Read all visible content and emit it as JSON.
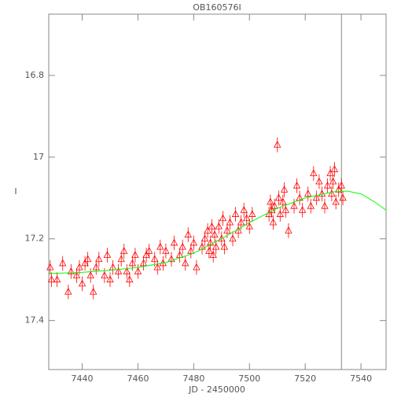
{
  "chart_data": {
    "type": "scatter",
    "title": "OB160576I",
    "x_label": "JD - 2450000",
    "y_label": "I",
    "xlim": [
      7428,
      7549
    ],
    "ylim": [
      17.52,
      16.65
    ],
    "xticks": [
      7440,
      7460,
      7480,
      7500,
      7520,
      7540
    ],
    "yticks": [
      16.8,
      17.0,
      17.2,
      17.4
    ],
    "vline": 7533,
    "vline_color": "#888888",
    "series": [
      {
        "type": "scatter",
        "color": "#ff0000",
        "error": 0.018,
        "x": [
          7428.5,
          7429,
          7431,
          7433,
          7435,
          7436,
          7438,
          7439,
          7440,
          7441,
          7442,
          7443,
          7444,
          7445,
          7446,
          7448,
          7449,
          7450,
          7451,
          7453,
          7454,
          7455,
          7456,
          7457,
          7458,
          7459,
          7460,
          7462,
          7463,
          7464,
          7466,
          7467,
          7468,
          7469,
          7470,
          7472,
          7473,
          7475,
          7476,
          7477,
          7478,
          7479,
          7480,
          7481,
          7483,
          7484,
          7485,
          7485.5,
          7486,
          7486.5,
          7487,
          7487.5,
          7488,
          7489,
          7490,
          7490.5,
          7491,
          7492,
          7493,
          7494,
          7495,
          7496,
          7497,
          7498,
          7499,
          7500,
          7501,
          7507,
          7507.5,
          7508,
          7508.5,
          7509,
          7510,
          7510.5,
          7511,
          7512,
          7512.5,
          7513,
          7514,
          7516,
          7517,
          7518,
          7519,
          7521,
          7522,
          7523,
          7524,
          7525,
          7526,
          7527,
          7528,
          7529,
          7529.5,
          7530,
          7530.5,
          7531,
          7532,
          7533,
          7533.5
        ],
        "values": [
          17.27,
          17.3,
          17.3,
          17.26,
          17.33,
          17.28,
          17.29,
          17.27,
          17.31,
          17.26,
          17.25,
          17.29,
          17.33,
          17.27,
          17.25,
          17.29,
          17.24,
          17.3,
          17.27,
          17.28,
          17.25,
          17.23,
          17.28,
          17.3,
          17.26,
          17.24,
          17.28,
          17.26,
          17.24,
          17.23,
          17.25,
          17.27,
          17.22,
          17.26,
          17.23,
          17.25,
          17.21,
          17.24,
          17.22,
          17.26,
          17.19,
          17.23,
          17.21,
          17.27,
          17.22,
          17.2,
          17.18,
          17.23,
          17.21,
          17.17,
          17.24,
          17.19,
          17.22,
          17.17,
          17.2,
          17.15,
          17.22,
          17.18,
          17.16,
          17.2,
          17.14,
          17.18,
          17.16,
          17.13,
          17.15,
          17.17,
          17.14,
          17.14,
          17.11,
          17.13,
          17.16,
          17.12,
          16.97,
          17.1,
          17.14,
          17.11,
          17.08,
          17.13,
          17.18,
          17.12,
          17.07,
          17.1,
          17.13,
          17.09,
          17.12,
          17.04,
          17.1,
          17.06,
          17.09,
          17.12,
          17.07,
          17.04,
          17.09,
          17.06,
          17.03,
          17.11,
          17.08,
          17.07,
          17.1
        ]
      },
      {
        "type": "line",
        "color": "#00ff00",
        "x": [
          7428,
          7440,
          7450,
          7460,
          7470,
          7480,
          7490,
          7500,
          7510,
          7520,
          7530,
          7535,
          7540,
          7545,
          7549
        ],
        "values": [
          17.285,
          17.282,
          17.277,
          17.27,
          17.258,
          17.235,
          17.2,
          17.16,
          17.125,
          17.1,
          17.085,
          17.083,
          17.09,
          17.11,
          17.13
        ]
      }
    ]
  }
}
